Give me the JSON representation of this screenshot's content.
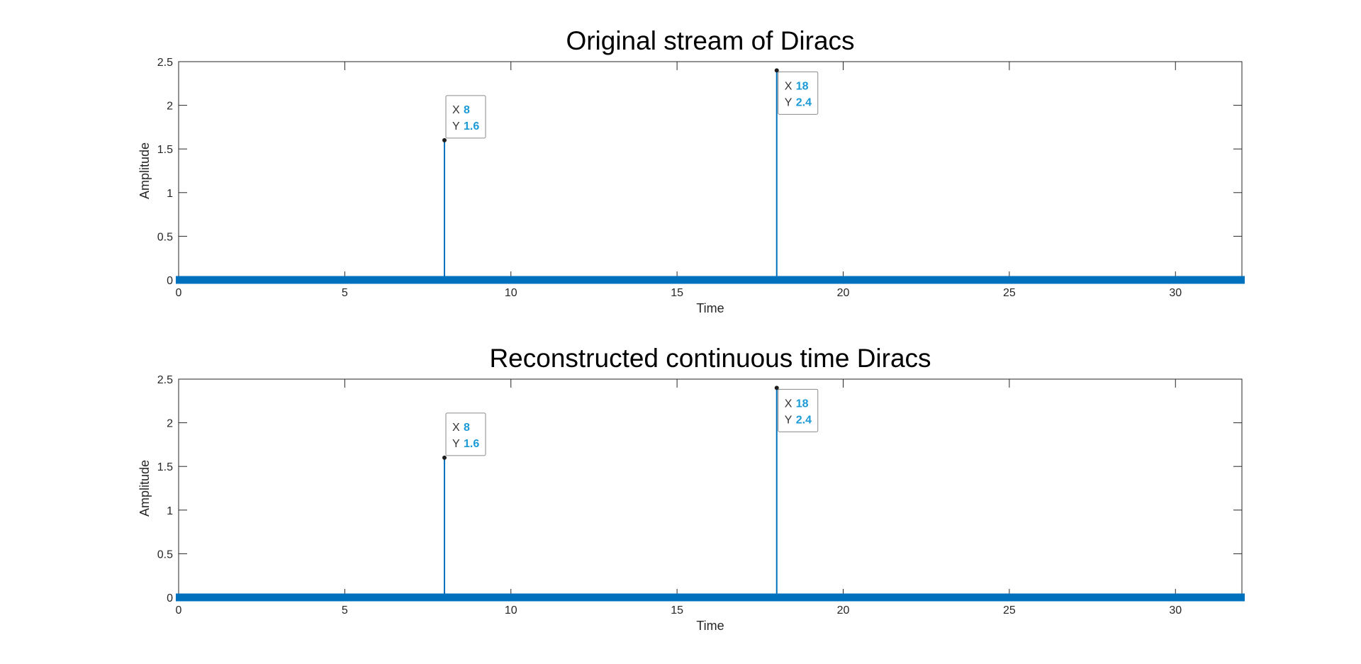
{
  "chart_data": [
    {
      "type": "stem",
      "title": "Original stream of Diracs",
      "xlabel": "Time",
      "ylabel": "Amplitude",
      "xlim": [
        0,
        32
      ],
      "ylim": [
        0,
        2.5
      ],
      "xticks": [
        0,
        5,
        10,
        15,
        20,
        25,
        30
      ],
      "yticks": [
        0,
        0.5,
        1,
        1.5,
        2,
        2.5
      ],
      "xtick_labels": [
        "0",
        "5",
        "10",
        "15",
        "20",
        "25",
        "30"
      ],
      "ytick_labels": [
        "0",
        "0.5",
        "1",
        "1.5",
        "2",
        "2.5"
      ],
      "grid": false,
      "series": [
        {
          "x": [
            8,
            18
          ],
          "y": [
            1.6,
            2.4
          ]
        }
      ],
      "baseline_markers": {
        "x_range": [
          0,
          32
        ],
        "value": 0
      },
      "datatips": [
        {
          "x_key": "X",
          "x_text": "8",
          "y_key": "Y",
          "y_text": "1.6",
          "x": 8,
          "y": 1.6
        },
        {
          "x_key": "X",
          "x_text": "18",
          "y_key": "Y",
          "y_text": "2.4",
          "x": 18,
          "y": 2.4
        }
      ]
    },
    {
      "type": "stem",
      "title": "Reconstructed continuous time Diracs",
      "xlabel": "Time",
      "ylabel": "Amplitude",
      "xlim": [
        0,
        32
      ],
      "ylim": [
        0,
        2.5
      ],
      "xticks": [
        0,
        5,
        10,
        15,
        20,
        25,
        30
      ],
      "yticks": [
        0,
        0.5,
        1,
        1.5,
        2,
        2.5
      ],
      "xtick_labels": [
        "0",
        "5",
        "10",
        "15",
        "20",
        "25",
        "30"
      ],
      "ytick_labels": [
        "0",
        "0.5",
        "1",
        "1.5",
        "2",
        "2.5"
      ],
      "grid": false,
      "series": [
        {
          "x": [
            8,
            18
          ],
          "y": [
            1.6,
            2.4
          ]
        }
      ],
      "baseline_markers": {
        "x_range": [
          0,
          32
        ],
        "value": 0
      },
      "datatips": [
        {
          "x_key": "X",
          "x_text": "8",
          "y_key": "Y",
          "y_text": "1.6",
          "x": 8,
          "y": 1.6
        },
        {
          "x_key": "X",
          "x_text": "18",
          "y_key": "Y",
          "y_text": "2.4",
          "x": 18,
          "y": 2.4
        }
      ]
    }
  ],
  "colors": {
    "series": "#0072bd",
    "axes": "#262626",
    "datatip_value": "#1a9ad6",
    "datatip_border": "#8a8a8a"
  }
}
